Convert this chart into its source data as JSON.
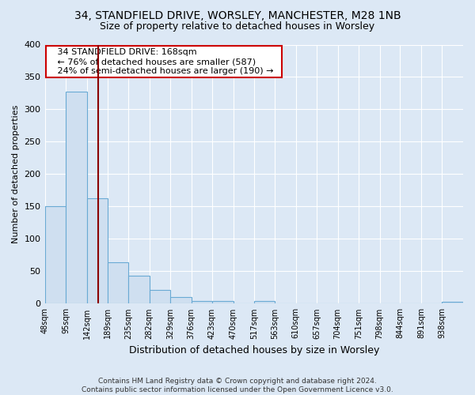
{
  "title1": "34, STANDFIELD DRIVE, WORSLEY, MANCHESTER, M28 1NB",
  "title2": "Size of property relative to detached houses in Worsley",
  "xlabel": "Distribution of detached houses by size in Worsley",
  "ylabel": "Number of detached properties",
  "footer1": "Contains HM Land Registry data © Crown copyright and database right 2024.",
  "footer2": "Contains public sector information licensed under the Open Government Licence v3.0.",
  "annotation_title": "34 STANDFIELD DRIVE: 168sqm",
  "annotation_line2": "← 76% of detached houses are smaller (587)",
  "annotation_line3": "24% of semi-detached houses are larger (190) →",
  "property_size": 168,
  "bar_edges": [
    48,
    95,
    142,
    189,
    235,
    282,
    329,
    376,
    423,
    470,
    517,
    563,
    610,
    657,
    704,
    751,
    798,
    844,
    891,
    938,
    985
  ],
  "bar_heights": [
    151,
    327,
    163,
    64,
    43,
    21,
    10,
    4,
    4,
    0,
    4,
    0,
    0,
    0,
    0,
    0,
    0,
    0,
    0,
    3
  ],
  "bar_color": "#cfdff0",
  "bar_edge_color": "#6aaad4",
  "vline_color": "#8b0000",
  "background_color": "#dce8f5",
  "grid_color": "#ffffff",
  "ylim": [
    0,
    400
  ],
  "yticks": [
    0,
    50,
    100,
    150,
    200,
    250,
    300,
    350,
    400
  ],
  "annotation_box_color": "#ffffff",
  "annotation_box_edge": "#cc0000",
  "title1_fontsize": 10,
  "title2_fontsize": 9,
  "xlabel_fontsize": 9,
  "ylabel_fontsize": 8,
  "footer_fontsize": 6.5
}
